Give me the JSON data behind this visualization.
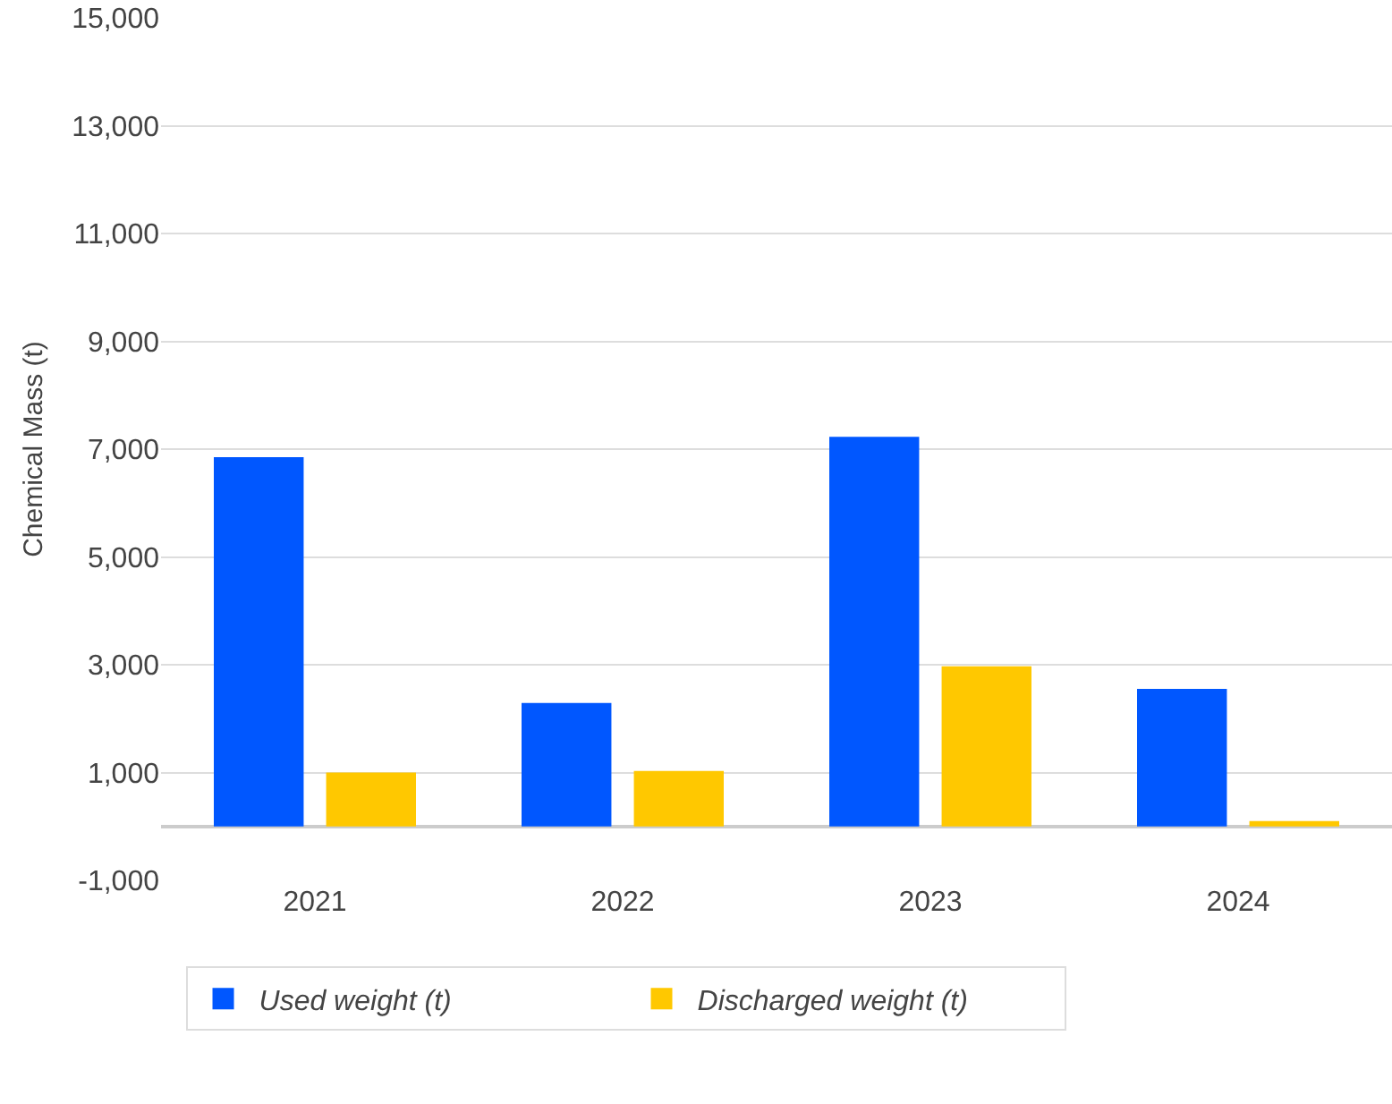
{
  "chart_data": {
    "type": "bar",
    "ylabel": "Chemical Mass (t)",
    "categories": [
      "2021",
      "2022",
      "2023",
      "2024"
    ],
    "series": [
      {
        "name": "Used weight (t)",
        "color": "#0057ff",
        "values": [
          6850,
          2290,
          7230,
          2550
        ]
      },
      {
        "name": "Discharged weight (t)",
        "color": "#ffc800",
        "values": [
          1000,
          1030,
          2970,
          100
        ]
      }
    ],
    "ylim": [
      -1000,
      15000
    ],
    "yticks": [
      {
        "value": -1000,
        "label": "-1,000"
      },
      {
        "value": 1000,
        "label": "1,000"
      },
      {
        "value": 3000,
        "label": "3,000"
      },
      {
        "value": 5000,
        "label": "5,000"
      },
      {
        "value": 7000,
        "label": "7,000"
      },
      {
        "value": 9000,
        "label": "9,000"
      },
      {
        "value": 11000,
        "label": "11,000"
      },
      {
        "value": 13000,
        "label": "13,000"
      },
      {
        "value": 15000,
        "label": "15,000"
      }
    ],
    "grid": "y",
    "legend": "bottom"
  }
}
